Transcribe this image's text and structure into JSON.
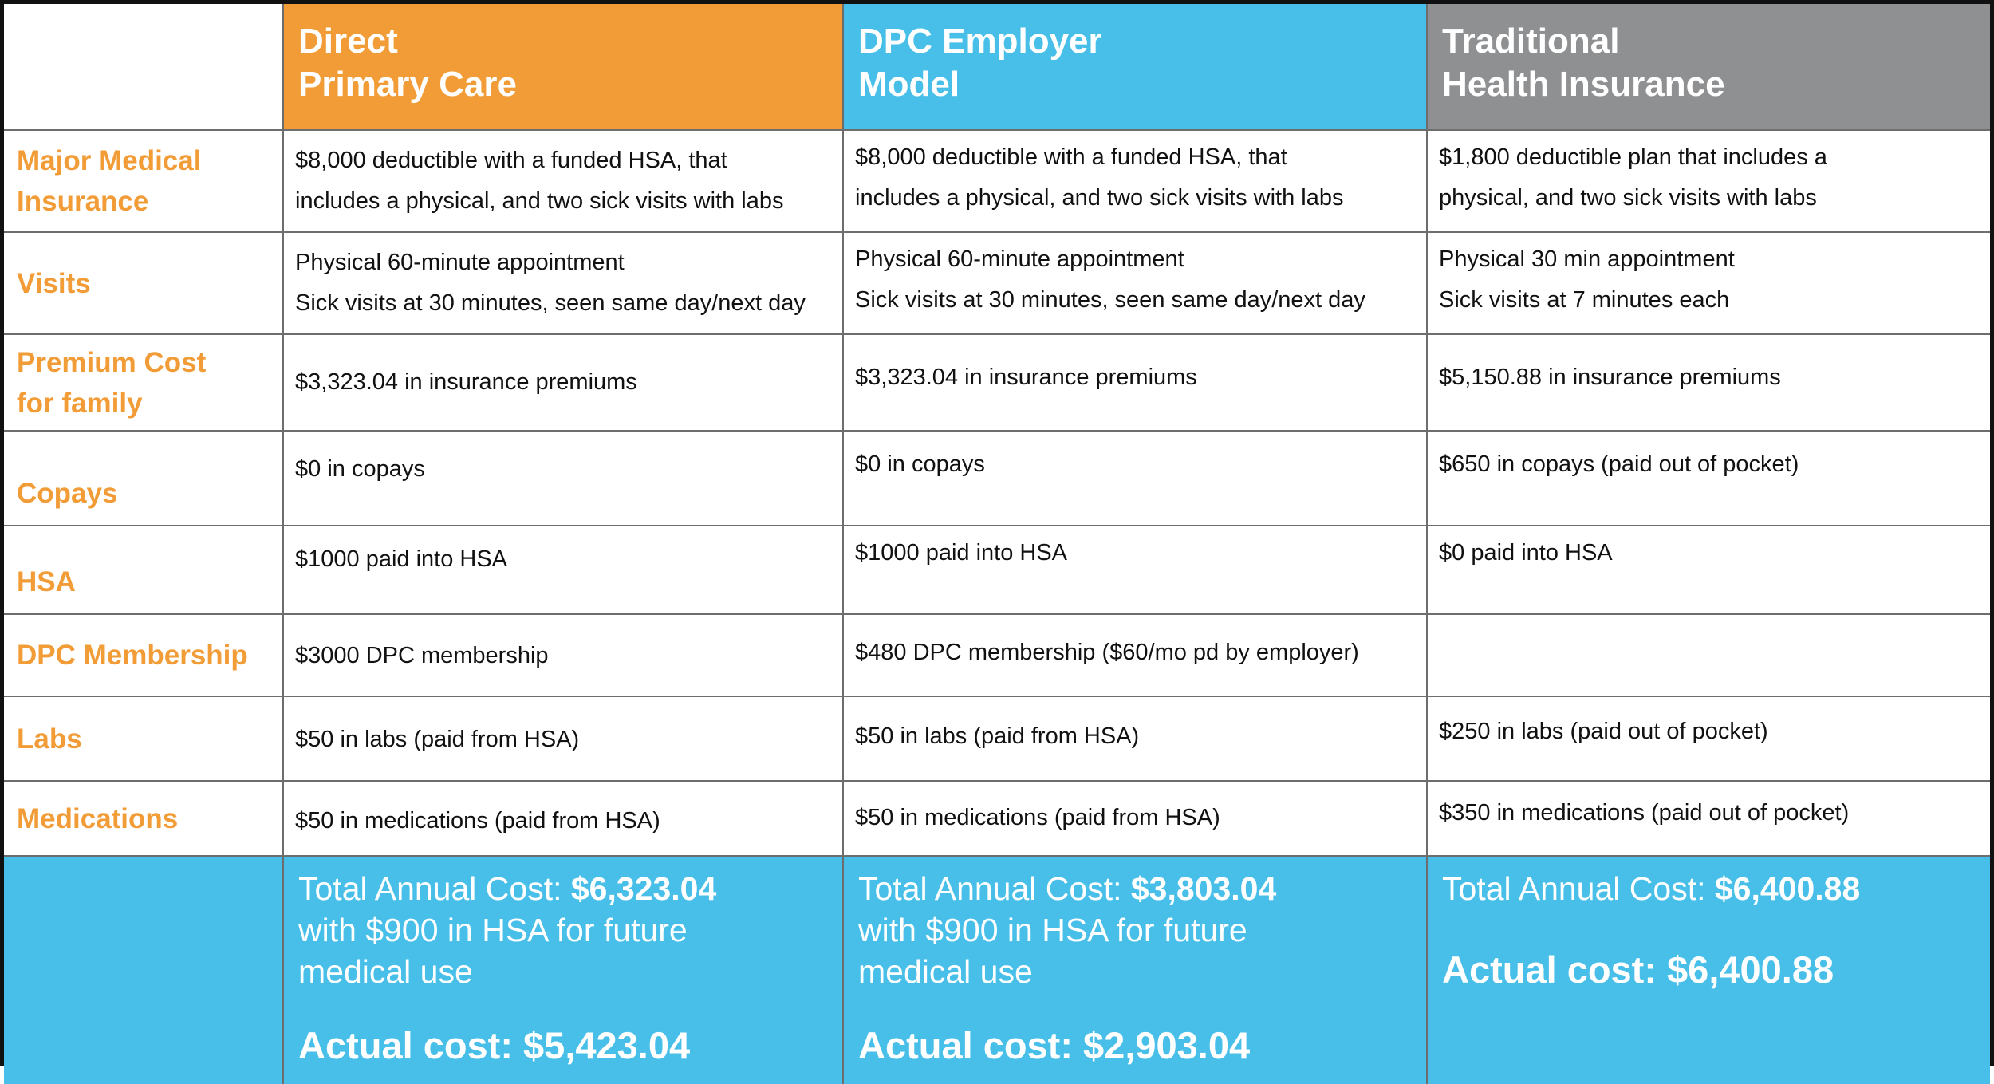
{
  "columns": [
    {
      "line1": "Direct",
      "line2": "Primary Care"
    },
    {
      "line1": "DPC Employer",
      "line2": "Model"
    },
    {
      "line1": "Traditional",
      "line2": "Health Insurance"
    }
  ],
  "rows": [
    {
      "label1": "Major Medical",
      "label2": "Insurance",
      "cells": [
        [
          "$8,000 deductible with a funded HSA, that",
          "includes a physical, and two sick visits with labs"
        ],
        [
          "$8,000 deductible with a funded HSA, that",
          "includes a physical, and two sick visits with labs"
        ],
        [
          "$1,800 deductible plan that includes a",
          "physical, and two sick visits with labs"
        ]
      ]
    },
    {
      "label1": "Visits",
      "label2": "",
      "cells": [
        [
          "Physical 60-minute appointment",
          "Sick visits at 30 minutes, seen same day/next day"
        ],
        [
          "Physical 60-minute appointment",
          "Sick visits at 30 minutes, seen same day/next day"
        ],
        [
          "Physical 30 min appointment",
          "Sick visits at 7 minutes each"
        ]
      ]
    },
    {
      "label1": "Premium Cost",
      "label2": "for family",
      "cells": [
        [
          "$3,323.04 in insurance premiums",
          ""
        ],
        [
          "$3,323.04  in insurance premiums",
          ""
        ],
        [
          "$5,150.88 in insurance premiums",
          ""
        ]
      ]
    },
    {
      "label1": "Copays",
      "label2": "",
      "cells": [
        [
          "$0 in copays",
          ""
        ],
        [
          "$0 in copays",
          ""
        ],
        [
          "$650 in copays (paid out of pocket)",
          ""
        ]
      ]
    },
    {
      "label1": "HSA",
      "label2": "",
      "cells": [
        [
          "$1000 paid into HSA",
          ""
        ],
        [
          "$1000 paid into HSA",
          ""
        ],
        [
          "$0 paid into HSA",
          ""
        ]
      ]
    },
    {
      "label1": "DPC Membership",
      "label2": "",
      "cells": [
        [
          "$3000 DPC membership",
          ""
        ],
        [
          "$480 DPC membership ($60/mo pd by employer)",
          ""
        ],
        [
          "",
          ""
        ]
      ]
    },
    {
      "label1": "Labs",
      "label2": "",
      "cells": [
        [
          "$50 in labs (paid from HSA)",
          ""
        ],
        [
          "$50 in labs (paid from HSA)",
          ""
        ],
        [
          "$250 in labs (paid out of pocket)",
          ""
        ]
      ]
    },
    {
      "label1": "Medications",
      "label2": "",
      "cells": [
        [
          "$50 in medications (paid from HSA)",
          ""
        ],
        [
          "$50 in medications (paid from HSA)",
          ""
        ],
        [
          "$350 in medications (paid out of pocket)",
          ""
        ]
      ]
    }
  ],
  "totals": [
    {
      "label": "Total Annual Cost: ",
      "value": "$6,323.04",
      "line2": "with $900 in HSA for future",
      "line3": "medical use",
      "actual": "Actual cost: $5,423.04"
    },
    {
      "label": "Total Annual Cost: ",
      "value": "$3,803.04",
      "line2": "with $900 in HSA for future",
      "line3": "medical use",
      "actual": "Actual cost: $2,903.04"
    },
    {
      "label": "Total Annual Cost: ",
      "value": "$6,400.88",
      "line2": "",
      "line3": "",
      "actual": "Actual cost: $6,400.88"
    }
  ],
  "colors": {
    "orange": "#f29c37",
    "blue": "#48bfe9",
    "gray": "#8f9092"
  }
}
